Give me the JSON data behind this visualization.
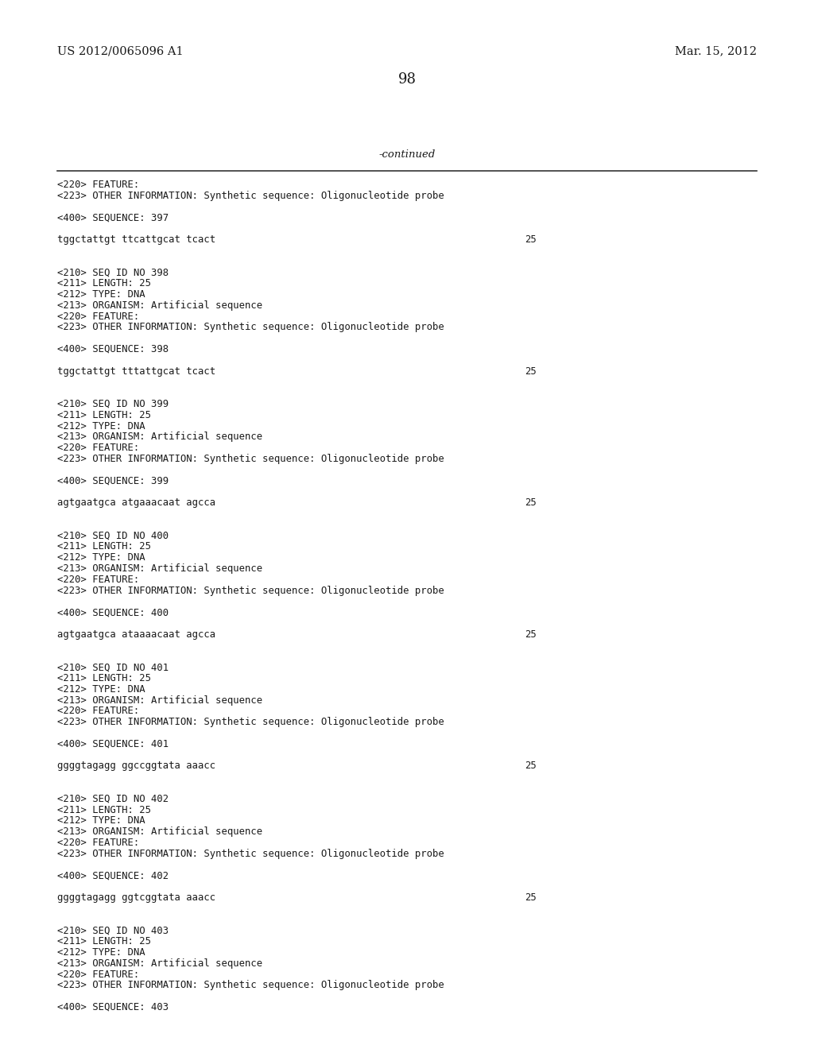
{
  "background_color": "#ffffff",
  "left_header": "US 2012/0065096 A1",
  "right_header": "Mar. 15, 2012",
  "page_number": "98",
  "continued_text": "-continued",
  "header_font_size": 10.5,
  "page_num_font_size": 13,
  "mono_font_size": 8.8,
  "content_font_size": 8.8,
  "lines": [
    {
      "text": "<220> FEATURE:",
      "indent": 0,
      "blank_before": false
    },
    {
      "text": "<223> OTHER INFORMATION: Synthetic sequence: Oligonucleotide probe",
      "indent": 0,
      "blank_before": false
    },
    {
      "text": "",
      "indent": 0,
      "blank_before": false
    },
    {
      "text": "<400> SEQUENCE: 397",
      "indent": 0,
      "blank_before": false
    },
    {
      "text": "",
      "indent": 0,
      "blank_before": false
    },
    {
      "text": "tggctattgt ttcattgcat tcact",
      "indent": 0,
      "blank_before": false,
      "num": "25"
    },
    {
      "text": "",
      "indent": 0,
      "blank_before": false
    },
    {
      "text": "",
      "indent": 0,
      "blank_before": false
    },
    {
      "text": "<210> SEQ ID NO 398",
      "indent": 0,
      "blank_before": false
    },
    {
      "text": "<211> LENGTH: 25",
      "indent": 0,
      "blank_before": false
    },
    {
      "text": "<212> TYPE: DNA",
      "indent": 0,
      "blank_before": false
    },
    {
      "text": "<213> ORGANISM: Artificial sequence",
      "indent": 0,
      "blank_before": false
    },
    {
      "text": "<220> FEATURE:",
      "indent": 0,
      "blank_before": false
    },
    {
      "text": "<223> OTHER INFORMATION: Synthetic sequence: Oligonucleotide probe",
      "indent": 0,
      "blank_before": false
    },
    {
      "text": "",
      "indent": 0,
      "blank_before": false
    },
    {
      "text": "<400> SEQUENCE: 398",
      "indent": 0,
      "blank_before": false
    },
    {
      "text": "",
      "indent": 0,
      "blank_before": false
    },
    {
      "text": "tggctattgt tttattgcat tcact",
      "indent": 0,
      "blank_before": false,
      "num": "25"
    },
    {
      "text": "",
      "indent": 0,
      "blank_before": false
    },
    {
      "text": "",
      "indent": 0,
      "blank_before": false
    },
    {
      "text": "<210> SEQ ID NO 399",
      "indent": 0,
      "blank_before": false
    },
    {
      "text": "<211> LENGTH: 25",
      "indent": 0,
      "blank_before": false
    },
    {
      "text": "<212> TYPE: DNA",
      "indent": 0,
      "blank_before": false
    },
    {
      "text": "<213> ORGANISM: Artificial sequence",
      "indent": 0,
      "blank_before": false
    },
    {
      "text": "<220> FEATURE:",
      "indent": 0,
      "blank_before": false
    },
    {
      "text": "<223> OTHER INFORMATION: Synthetic sequence: Oligonucleotide probe",
      "indent": 0,
      "blank_before": false
    },
    {
      "text": "",
      "indent": 0,
      "blank_before": false
    },
    {
      "text": "<400> SEQUENCE: 399",
      "indent": 0,
      "blank_before": false
    },
    {
      "text": "",
      "indent": 0,
      "blank_before": false
    },
    {
      "text": "agtgaatgca atgaaacaat agcca",
      "indent": 0,
      "blank_before": false,
      "num": "25"
    },
    {
      "text": "",
      "indent": 0,
      "blank_before": false
    },
    {
      "text": "",
      "indent": 0,
      "blank_before": false
    },
    {
      "text": "<210> SEQ ID NO 400",
      "indent": 0,
      "blank_before": false
    },
    {
      "text": "<211> LENGTH: 25",
      "indent": 0,
      "blank_before": false
    },
    {
      "text": "<212> TYPE: DNA",
      "indent": 0,
      "blank_before": false
    },
    {
      "text": "<213> ORGANISM: Artificial sequence",
      "indent": 0,
      "blank_before": false
    },
    {
      "text": "<220> FEATURE:",
      "indent": 0,
      "blank_before": false
    },
    {
      "text": "<223> OTHER INFORMATION: Synthetic sequence: Oligonucleotide probe",
      "indent": 0,
      "blank_before": false
    },
    {
      "text": "",
      "indent": 0,
      "blank_before": false
    },
    {
      "text": "<400> SEQUENCE: 400",
      "indent": 0,
      "blank_before": false
    },
    {
      "text": "",
      "indent": 0,
      "blank_before": false
    },
    {
      "text": "agtgaatgca ataaaacaat agcca",
      "indent": 0,
      "blank_before": false,
      "num": "25"
    },
    {
      "text": "",
      "indent": 0,
      "blank_before": false
    },
    {
      "text": "",
      "indent": 0,
      "blank_before": false
    },
    {
      "text": "<210> SEQ ID NO 401",
      "indent": 0,
      "blank_before": false
    },
    {
      "text": "<211> LENGTH: 25",
      "indent": 0,
      "blank_before": false
    },
    {
      "text": "<212> TYPE: DNA",
      "indent": 0,
      "blank_before": false
    },
    {
      "text": "<213> ORGANISM: Artificial sequence",
      "indent": 0,
      "blank_before": false
    },
    {
      "text": "<220> FEATURE:",
      "indent": 0,
      "blank_before": false
    },
    {
      "text": "<223> OTHER INFORMATION: Synthetic sequence: Oligonucleotide probe",
      "indent": 0,
      "blank_before": false
    },
    {
      "text": "",
      "indent": 0,
      "blank_before": false
    },
    {
      "text": "<400> SEQUENCE: 401",
      "indent": 0,
      "blank_before": false
    },
    {
      "text": "",
      "indent": 0,
      "blank_before": false
    },
    {
      "text": "ggggtagagg ggccggtata aaacc",
      "indent": 0,
      "blank_before": false,
      "num": "25"
    },
    {
      "text": "",
      "indent": 0,
      "blank_before": false
    },
    {
      "text": "",
      "indent": 0,
      "blank_before": false
    },
    {
      "text": "<210> SEQ ID NO 402",
      "indent": 0,
      "blank_before": false
    },
    {
      "text": "<211> LENGTH: 25",
      "indent": 0,
      "blank_before": false
    },
    {
      "text": "<212> TYPE: DNA",
      "indent": 0,
      "blank_before": false
    },
    {
      "text": "<213> ORGANISM: Artificial sequence",
      "indent": 0,
      "blank_before": false
    },
    {
      "text": "<220> FEATURE:",
      "indent": 0,
      "blank_before": false
    },
    {
      "text": "<223> OTHER INFORMATION: Synthetic sequence: Oligonucleotide probe",
      "indent": 0,
      "blank_before": false
    },
    {
      "text": "",
      "indent": 0,
      "blank_before": false
    },
    {
      "text": "<400> SEQUENCE: 402",
      "indent": 0,
      "blank_before": false
    },
    {
      "text": "",
      "indent": 0,
      "blank_before": false
    },
    {
      "text": "ggggtagagg ggtcggtata aaacc",
      "indent": 0,
      "blank_before": false,
      "num": "25"
    },
    {
      "text": "",
      "indent": 0,
      "blank_before": false
    },
    {
      "text": "",
      "indent": 0,
      "blank_before": false
    },
    {
      "text": "<210> SEQ ID NO 403",
      "indent": 0,
      "blank_before": false
    },
    {
      "text": "<211> LENGTH: 25",
      "indent": 0,
      "blank_before": false
    },
    {
      "text": "<212> TYPE: DNA",
      "indent": 0,
      "blank_before": false
    },
    {
      "text": "<213> ORGANISM: Artificial sequence",
      "indent": 0,
      "blank_before": false
    },
    {
      "text": "<220> FEATURE:",
      "indent": 0,
      "blank_before": false
    },
    {
      "text": "<223> OTHER INFORMATION: Synthetic sequence: Oligonucleotide probe",
      "indent": 0,
      "blank_before": false
    },
    {
      "text": "",
      "indent": 0,
      "blank_before": false
    },
    {
      "text": "<400> SEQUENCE: 403",
      "indent": 0,
      "blank_before": false
    }
  ]
}
